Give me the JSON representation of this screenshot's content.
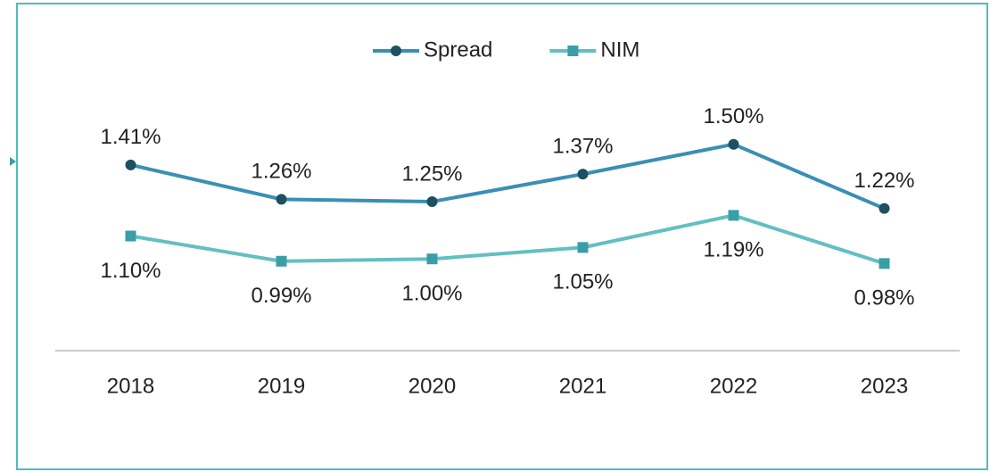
{
  "chart_data": {
    "type": "line",
    "categories": [
      "2018",
      "2019",
      "2020",
      "2021",
      "2022",
      "2023"
    ],
    "series": [
      {
        "name": "Spread",
        "color": "#3a8fb4",
        "marker_color": "#1e4f62",
        "marker": "circle",
        "label_position": "above",
        "values": [
          1.41,
          1.26,
          1.25,
          1.37,
          1.5,
          1.22
        ],
        "value_labels": [
          "1.41%",
          "1.26%",
          "1.25%",
          "1.37%",
          "1.50%",
          "1.22%"
        ]
      },
      {
        "name": "NIM",
        "color": "#63bfc2",
        "marker_color": "#3a9ea6",
        "marker": "square",
        "label_position": "below",
        "values": [
          1.1,
          0.99,
          1.0,
          1.05,
          1.19,
          0.98
        ],
        "value_labels": [
          "1.10%",
          "0.99%",
          "1.00%",
          "1.05%",
          "1.19%",
          "0.98%"
        ]
      }
    ],
    "ylim": [
      0.6,
      1.6
    ],
    "legend": "top"
  }
}
